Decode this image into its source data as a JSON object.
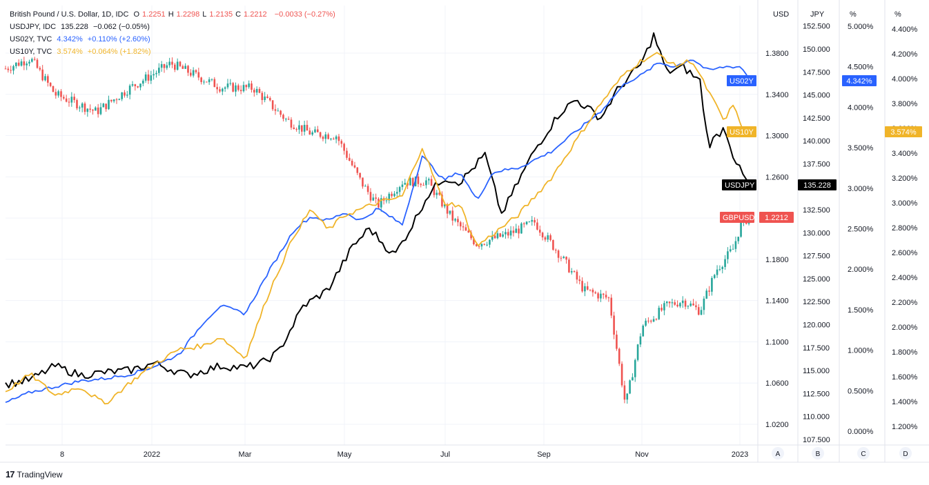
{
  "legend": {
    "gbp": {
      "name": "British Pound / U.S. Dollar, 1D, IDC",
      "o_label": "O",
      "o": "1.2251",
      "h_label": "H",
      "h": "1.2298",
      "l_label": "L",
      "l": "1.2135",
      "c_label": "C",
      "c": "1.2212",
      "chg": "−0.0033 (−0.27%)"
    },
    "jpy": {
      "name": "USDJPY, IDC",
      "last": "135.228",
      "chg": "−0.062 (−0.05%)"
    },
    "us02": {
      "name": "US02Y, TVC",
      "last": "4.342%",
      "chg": "+0.110% (+2.60%)"
    },
    "us10": {
      "name": "US10Y, TVC",
      "last": "3.574%",
      "chg": "+0.064% (+1.82%)"
    }
  },
  "axis_headers": {
    "usd": "USD",
    "jpy": "JPY",
    "pct_c": "%",
    "pct_d": "%"
  },
  "pane_labels": [
    "A",
    "B",
    "C",
    "D"
  ],
  "tags": {
    "us02y": {
      "label": "US02Y",
      "value": "4.342%",
      "color": "#2962ff"
    },
    "us10y": {
      "label": "US10Y",
      "value": "3.574%",
      "color": "#f0b429"
    },
    "usdjpy": {
      "label": "USDJPY",
      "value": "135.228",
      "color": "#000000"
    },
    "gbpusd": {
      "label": "GBPUSD",
      "value": "1.2212",
      "color": "#ef5350"
    }
  },
  "branding": {
    "name": "TradingView"
  },
  "chart_data": {
    "type": "line",
    "x_tick_labels": [
      "8",
      "2022",
      "Mar",
      "May",
      "Jul",
      "Sep",
      "Nov",
      "2023"
    ],
    "x_start": "2021-10-25",
    "usd_ticks": [
      "1.3800",
      "1.3400",
      "1.3000",
      "1.2600",
      "1.2200",
      "1.1800",
      "1.1400",
      "1.1000",
      "1.0600",
      "1.0200"
    ],
    "jpy_ticks": [
      "152.500",
      "150.000",
      "147.500",
      "145.000",
      "142.500",
      "140.000",
      "137.500",
      "135.000",
      "132.500",
      "130.000",
      "127.500",
      "125.000",
      "122.500",
      "120.000",
      "117.500",
      "115.000",
      "112.500",
      "110.000",
      "107.500"
    ],
    "pct_c_ticks": [
      "5.000%",
      "4.500%",
      "4.000%",
      "3.500%",
      "3.000%",
      "2.500%",
      "2.000%",
      "1.500%",
      "1.000%",
      "0.500%",
      "0.000%"
    ],
    "pct_d_ticks": [
      "4.400%",
      "4.200%",
      "4.000%",
      "3.800%",
      "3.600%",
      "3.400%",
      "3.200%",
      "3.000%",
      "2.800%",
      "2.600%",
      "2.400%",
      "2.200%",
      "2.000%",
      "1.800%",
      "1.600%",
      "1.400%",
      "1.200%"
    ],
    "colors": {
      "up": "#26a69a",
      "down": "#ef5350",
      "usdjpy": "#000000",
      "us02y": "#2962ff",
      "us10y": "#f0b429"
    },
    "series": [
      {
        "name": "GBPUSD",
        "axis": "USD",
        "style": "candles",
        "values": [
          [
            0,
            1.365
          ],
          [
            15,
            1.375
          ],
          [
            30,
            1.34
          ],
          [
            55,
            1.323
          ],
          [
            75,
            1.346
          ],
          [
            100,
            1.37
          ],
          [
            130,
            1.347
          ],
          [
            150,
            1.346
          ],
          [
            170,
            1.315
          ],
          [
            185,
            1.302
          ],
          [
            200,
            1.3
          ],
          [
            215,
            1.255
          ],
          [
            225,
            1.232
          ],
          [
            240,
            1.255
          ],
          [
            255,
            1.256
          ],
          [
            270,
            1.22
          ],
          [
            285,
            1.195
          ],
          [
            305,
            1.205
          ],
          [
            320,
            1.216
          ],
          [
            335,
            1.185
          ],
          [
            350,
            1.15
          ],
          [
            365,
            1.142
          ],
          [
            375,
            1.038
          ],
          [
            385,
            1.115
          ],
          [
            400,
            1.135
          ],
          [
            410,
            1.14
          ],
          [
            420,
            1.13
          ],
          [
            430,
            1.17
          ],
          [
            440,
            1.19
          ],
          [
            445,
            1.215
          ],
          [
            450,
            1.221
          ]
        ]
      },
      {
        "name": "USDJPY",
        "axis": "JPY",
        "values": [
          [
            0,
            113.5
          ],
          [
            15,
            114.0
          ],
          [
            30,
            115.5
          ],
          [
            45,
            114.5
          ],
          [
            60,
            114.8
          ],
          [
            75,
            115.0
          ],
          [
            90,
            115.8
          ],
          [
            110,
            114.5
          ],
          [
            130,
            115.5
          ],
          [
            145,
            115.3
          ],
          [
            155,
            115.8
          ],
          [
            165,
            117.0
          ],
          [
            180,
            122.0
          ],
          [
            195,
            123.8
          ],
          [
            210,
            128.5
          ],
          [
            220,
            130.5
          ],
          [
            235,
            127.5
          ],
          [
            245,
            130.5
          ],
          [
            255,
            134.0
          ],
          [
            265,
            136.0
          ],
          [
            275,
            135.5
          ],
          [
            290,
            138.5
          ],
          [
            300,
            132.0
          ],
          [
            310,
            135.5
          ],
          [
            320,
            139.0
          ],
          [
            335,
            143.0
          ],
          [
            345,
            144.5
          ],
          [
            360,
            142.5
          ],
          [
            370,
            145.5
          ],
          [
            385,
            148.5
          ],
          [
            392,
            151.5
          ],
          [
            400,
            147.5
          ],
          [
            410,
            148.0
          ],
          [
            420,
            146.5
          ],
          [
            425,
            139.5
          ],
          [
            435,
            141.5
          ],
          [
            440,
            138.5
          ],
          [
            445,
            136.5
          ],
          [
            450,
            135.2
          ]
        ]
      },
      {
        "name": "US02Y",
        "axis": "PCT_C",
        "values": [
          [
            0,
            0.35
          ],
          [
            15,
            0.48
          ],
          [
            30,
            0.55
          ],
          [
            45,
            0.62
          ],
          [
            60,
            0.65
          ],
          [
            75,
            0.7
          ],
          [
            90,
            0.8
          ],
          [
            105,
            0.95
          ],
          [
            120,
            1.35
          ],
          [
            130,
            1.55
          ],
          [
            145,
            1.45
          ],
          [
            160,
            2.0
          ],
          [
            175,
            2.5
          ],
          [
            185,
            2.65
          ],
          [
            195,
            2.6
          ],
          [
            205,
            2.7
          ],
          [
            215,
            2.6
          ],
          [
            225,
            2.75
          ],
          [
            240,
            2.55
          ],
          [
            252,
            3.4
          ],
          [
            265,
            3.1
          ],
          [
            275,
            3.2
          ],
          [
            285,
            2.85
          ],
          [
            295,
            3.2
          ],
          [
            310,
            3.25
          ],
          [
            330,
            3.45
          ],
          [
            345,
            3.7
          ],
          [
            360,
            3.95
          ],
          [
            375,
            4.3
          ],
          [
            385,
            4.4
          ],
          [
            395,
            4.55
          ],
          [
            405,
            4.5
          ],
          [
            415,
            4.6
          ],
          [
            425,
            4.45
          ],
          [
            435,
            4.5
          ],
          [
            445,
            4.5
          ],
          [
            450,
            4.34
          ]
        ]
      },
      {
        "name": "US10Y",
        "axis": "PCT_D",
        "values": [
          [
            0,
            1.48
          ],
          [
            15,
            1.62
          ],
          [
            30,
            1.45
          ],
          [
            45,
            1.52
          ],
          [
            60,
            1.38
          ],
          [
            75,
            1.55
          ],
          [
            90,
            1.7
          ],
          [
            105,
            1.82
          ],
          [
            120,
            1.85
          ],
          [
            130,
            1.92
          ],
          [
            145,
            1.75
          ],
          [
            160,
            2.3
          ],
          [
            175,
            2.75
          ],
          [
            185,
            2.95
          ],
          [
            195,
            2.78
          ],
          [
            205,
            2.9
          ],
          [
            215,
            2.95
          ],
          [
            225,
            3.0
          ],
          [
            240,
            3.05
          ],
          [
            252,
            3.45
          ],
          [
            265,
            3.0
          ],
          [
            275,
            2.98
          ],
          [
            285,
            2.65
          ],
          [
            295,
            2.75
          ],
          [
            310,
            2.9
          ],
          [
            330,
            3.2
          ],
          [
            345,
            3.5
          ],
          [
            360,
            3.8
          ],
          [
            375,
            4.05
          ],
          [
            385,
            4.15
          ],
          [
            395,
            4.2
          ],
          [
            405,
            4.1
          ],
          [
            415,
            4.15
          ],
          [
            425,
            3.9
          ],
          [
            435,
            3.65
          ],
          [
            440,
            3.8
          ],
          [
            445,
            3.6
          ],
          [
            450,
            3.57
          ]
        ]
      }
    ],
    "grid": true
  }
}
